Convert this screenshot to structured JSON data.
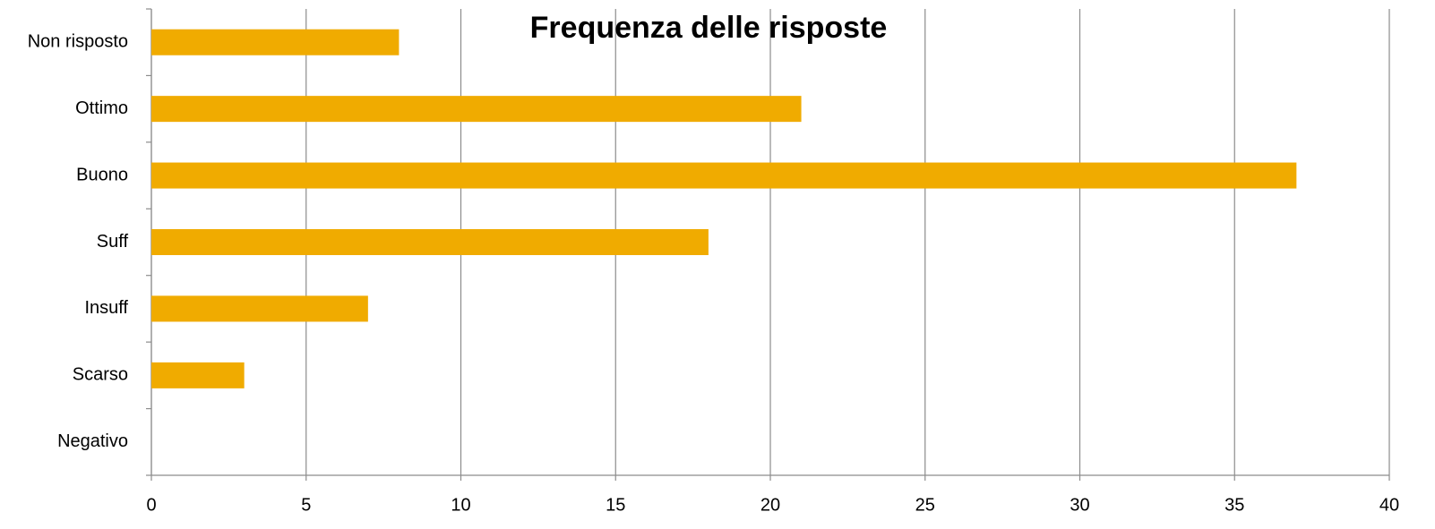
{
  "chart_data": {
    "type": "hbar",
    "title": "Frequenza delle risposte",
    "categories": [
      "Non risposto",
      "Ottimo",
      "Buono",
      "Suff",
      "Insuff",
      "Scarso",
      "Negativo"
    ],
    "values": [
      8,
      21,
      37,
      18,
      7,
      3,
      0
    ],
    "color": "#f0ab00",
    "xlim": [
      0,
      40
    ],
    "xticks": [
      0,
      5,
      10,
      15,
      20,
      25,
      30,
      35,
      40
    ],
    "grid": true
  }
}
